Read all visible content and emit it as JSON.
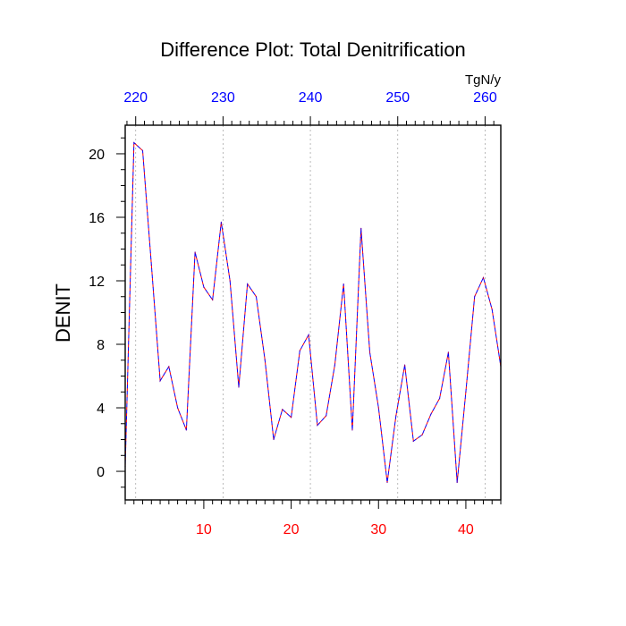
{
  "chart_data": {
    "type": "line",
    "title": "Difference Plot: Total Denitrification",
    "ylabel": "DENIT",
    "units_label": "TgN/y",
    "bottom_axis": {
      "xlim": [
        1,
        44
      ],
      "ticks": [
        10,
        20,
        30,
        40
      ],
      "color": "#ff0000"
    },
    "top_axis": {
      "xlim": [
        218.8,
        261.8
      ],
      "ticks": [
        220,
        230,
        240,
        250,
        260
      ],
      "color": "#0000ff"
    },
    "ylim": [
      -1.8,
      21.8
    ],
    "yticks": [
      0,
      4,
      8,
      12,
      16,
      20
    ],
    "grid": "vertical dotted at top-axis ticks",
    "series": [
      {
        "color_primary": "#ff0000",
        "color_secondary": "#0000ff",
        "style": "dashed",
        "x": [
          1,
          2,
          3,
          4,
          5,
          6,
          7,
          8,
          9,
          10,
          11,
          12,
          13,
          14,
          15,
          16,
          17,
          18,
          19,
          20,
          21,
          22,
          23,
          24,
          25,
          26,
          27,
          28,
          29,
          30,
          31,
          32,
          33,
          34,
          35,
          36,
          37,
          38,
          39,
          40,
          41,
          42,
          43,
          44
        ],
        "values": [
          0.3,
          20.7,
          20.2,
          13.0,
          5.7,
          6.6,
          4.0,
          2.6,
          13.8,
          11.6,
          10.8,
          15.7,
          12.0,
          5.3,
          11.8,
          11.0,
          7.0,
          2.0,
          3.9,
          3.4,
          7.6,
          8.6,
          2.9,
          3.5,
          6.7,
          11.8,
          2.6,
          15.3,
          7.5,
          4.0,
          -0.7,
          3.5,
          6.7,
          1.9,
          2.3,
          3.6,
          4.6,
          7.5,
          -0.7,
          5.0,
          11.0,
          12.2,
          10.2,
          6.6
        ]
      }
    ]
  }
}
